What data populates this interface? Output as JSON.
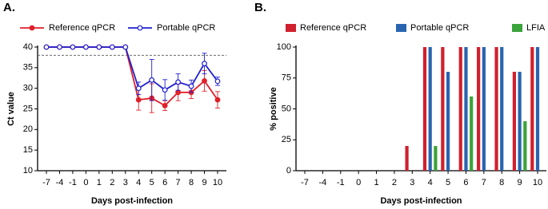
{
  "chart_data": [
    {
      "type": "line",
      "panel_label": "A.",
      "y_label": "Ct value",
      "x_label": "Days post-infection",
      "categories": [
        "-7",
        "-4",
        "-1",
        "0",
        "1",
        "2",
        "3",
        "4",
        "5",
        "6",
        "7",
        "8",
        "9",
        "10"
      ],
      "ylim": [
        10,
        40
      ],
      "yticks": [
        10,
        15,
        20,
        25,
        30,
        35,
        40
      ],
      "reference_line": 38,
      "series": [
        {
          "name": "Reference qPCR",
          "color": "#e0202a",
          "marker": "filled",
          "values": [
            40,
            40,
            40,
            40,
            40,
            40,
            40,
            27.2,
            27.6,
            25.8,
            29,
            29,
            31.8,
            27.2
          ],
          "errors": [
            null,
            null,
            null,
            null,
            null,
            null,
            null,
            2.5,
            3.5,
            1.2,
            2,
            1.5,
            2.5,
            2
          ]
        },
        {
          "name": "Portable qPCR",
          "color": "#2020d0",
          "marker": "open",
          "values": [
            40,
            40,
            40,
            40,
            40,
            40,
            40,
            30,
            32,
            29.6,
            31.5,
            30.5,
            36,
            31.7
          ],
          "errors": [
            null,
            null,
            null,
            null,
            null,
            null,
            null,
            1.5,
            5,
            2.5,
            2,
            1.5,
            2.5,
            1
          ]
        }
      ]
    },
    {
      "type": "bar",
      "panel_label": "B.",
      "y_label": "% positive",
      "x_label": "Days post-infection",
      "categories": [
        "-7",
        "-4",
        "-1",
        "0",
        "1",
        "2",
        "3",
        "4",
        "5",
        "6",
        "7",
        "8",
        "9",
        "10"
      ],
      "ylim": [
        0,
        100
      ],
      "yticks": [
        0,
        25,
        50,
        75,
        100
      ],
      "series": [
        {
          "name": "Reference qPCR",
          "color": "#d0202e",
          "values": [
            0,
            0,
            0,
            0,
            0,
            0,
            20,
            100,
            100,
            100,
            100,
            100,
            80,
            100
          ]
        },
        {
          "name": "Portable qPCR",
          "color": "#2a64b0",
          "values": [
            0,
            0,
            0,
            0,
            0,
            0,
            0,
            100,
            80,
            100,
            100,
            100,
            80,
            100
          ]
        },
        {
          "name": "LFIA",
          "color": "#3aa33a",
          "values": [
            0,
            0,
            0,
            0,
            0,
            0,
            0,
            20,
            0,
            60,
            0,
            0,
            40,
            0
          ]
        }
      ]
    }
  ]
}
